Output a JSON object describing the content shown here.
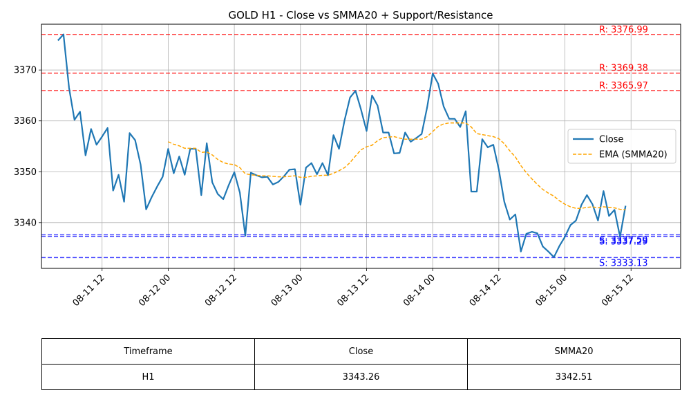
{
  "chart_data": {
    "type": "line",
    "title": "GOLD H1 - Close vs SMMA20 + Support/Resistance",
    "xlabel": "",
    "ylabel": "",
    "grid": true,
    "legend_position": "center-right",
    "ylim": [
      3331,
      3379
    ],
    "xlim": [
      "2025-08-11 01:00",
      "2025-08-15 21:00"
    ],
    "x_ticks": [
      "08-11 12",
      "08-12 00",
      "08-12 12",
      "08-13 00",
      "08-13 12",
      "08-14 00",
      "08-14 12",
      "08-15 00",
      "08-15 12"
    ],
    "y_ticks": [
      3340,
      3350,
      3360,
      3370
    ],
    "x_start": "2025-08-11 04:00",
    "x_step_hours": 1,
    "series": [
      {
        "name": "Close",
        "color": "#1f77b4",
        "style": "solid",
        "values": [
          3375.8,
          3377.0,
          3366.5,
          3360.2,
          3361.8,
          3353.2,
          3358.4,
          3355.3,
          3356.9,
          3358.6,
          3346.3,
          3349.4,
          3344.1,
          3357.6,
          3356.2,
          3351.4,
          3342.6,
          3345.0,
          3347.1,
          3349.0,
          3354.5,
          3349.7,
          3353.0,
          3349.4,
          3354.5,
          3354.5,
          3345.4,
          3355.6,
          3347.9,
          3345.6,
          3344.6,
          3347.4,
          3349.9,
          3345.9,
          3337.4,
          3349.8,
          3349.3,
          3348.9,
          3349.0,
          3347.5,
          3348.0,
          3349.1,
          3350.4,
          3350.5,
          3343.5,
          3350.8,
          3351.7,
          3349.5,
          3351.7,
          3349.3,
          3357.2,
          3354.5,
          3360.1,
          3364.6,
          3365.9,
          3362.2,
          3358.0,
          3365.0,
          3363.0,
          3357.7,
          3357.7,
          3353.6,
          3353.7,
          3357.7,
          3355.9,
          3356.6,
          3357.4,
          3362.7,
          3369.3,
          3367.3,
          3362.8,
          3360.4,
          3360.4,
          3358.8,
          3361.9,
          3346.1,
          3346.1,
          3356.4,
          3354.8,
          3355.3,
          3350.4,
          3344.1,
          3340.6,
          3341.6,
          3334.3,
          3337.8,
          3338.2,
          3337.9,
          3335.3,
          3334.3,
          3333.2,
          3335.4,
          3337.2,
          3339.5,
          3340.4,
          3343.5,
          3345.4,
          3343.6,
          3340.4,
          3346.2,
          3341.3,
          3342.5,
          3337.2,
          3343.3
        ]
      },
      {
        "name": "EMA (SMMA20)",
        "color": "#ffa500",
        "style": "dashed",
        "start_index": 20,
        "values": [
          3355.9,
          3355.4,
          3355.1,
          3354.6,
          3354.6,
          3354.6,
          3353.8,
          3353.9,
          3353.3,
          3352.4,
          3351.8,
          3351.5,
          3351.4,
          3350.8,
          3349.6,
          3349.4,
          3349.3,
          3349.2,
          3349.2,
          3349.1,
          3349.0,
          3349.0,
          3349.1,
          3349.2,
          3348.9,
          3348.9,
          3349.1,
          3349.2,
          3349.3,
          3349.3,
          3349.7,
          3350.2,
          3350.8,
          3351.8,
          3353.1,
          3354.3,
          3354.9,
          3355.2,
          3356.1,
          3356.7,
          3356.8,
          3356.9,
          3356.6,
          3356.4,
          3356.4,
          3356.4,
          3356.4,
          3356.9,
          3357.9,
          3358.9,
          3359.4,
          3359.6,
          3359.6,
          3359.6,
          3359.6,
          3358.8,
          3357.5,
          3357.3,
          3357.1,
          3356.9,
          3356.5,
          3355.5,
          3354.1,
          3352.9,
          3351.2,
          3349.8,
          3348.6,
          3347.5,
          3346.5,
          3345.8,
          3345.2,
          3344.3,
          3343.6,
          3343.1,
          3342.8,
          3342.8,
          3343.0,
          3343.1,
          3342.9,
          3343.1,
          3343.0,
          3342.9,
          3342.6,
          3342.5
        ]
      }
    ],
    "levels": [
      {
        "label": "R: 3376.99",
        "value": 3376.99,
        "kind": "resistance",
        "color": "#ff0000"
      },
      {
        "label": "R: 3369.38",
        "value": 3369.38,
        "kind": "resistance",
        "color": "#ff0000"
      },
      {
        "label": "R: 3365.97",
        "value": 3365.97,
        "kind": "resistance",
        "color": "#ff0000"
      },
      {
        "label": "S: 3337.29",
        "value": 3337.29,
        "kind": "support",
        "color": "#0000ff"
      },
      {
        "label": "S: 3337.59",
        "value": 3337.59,
        "kind": "support",
        "color": "#0000ff"
      },
      {
        "label": "S: 3333.13",
        "value": 3333.13,
        "kind": "support",
        "color": "#0000ff"
      }
    ]
  },
  "table": {
    "headers": [
      "Timeframe",
      "Close",
      "SMMA20"
    ],
    "rows": [
      [
        "H1",
        "3343.26",
        "3342.51"
      ]
    ]
  }
}
